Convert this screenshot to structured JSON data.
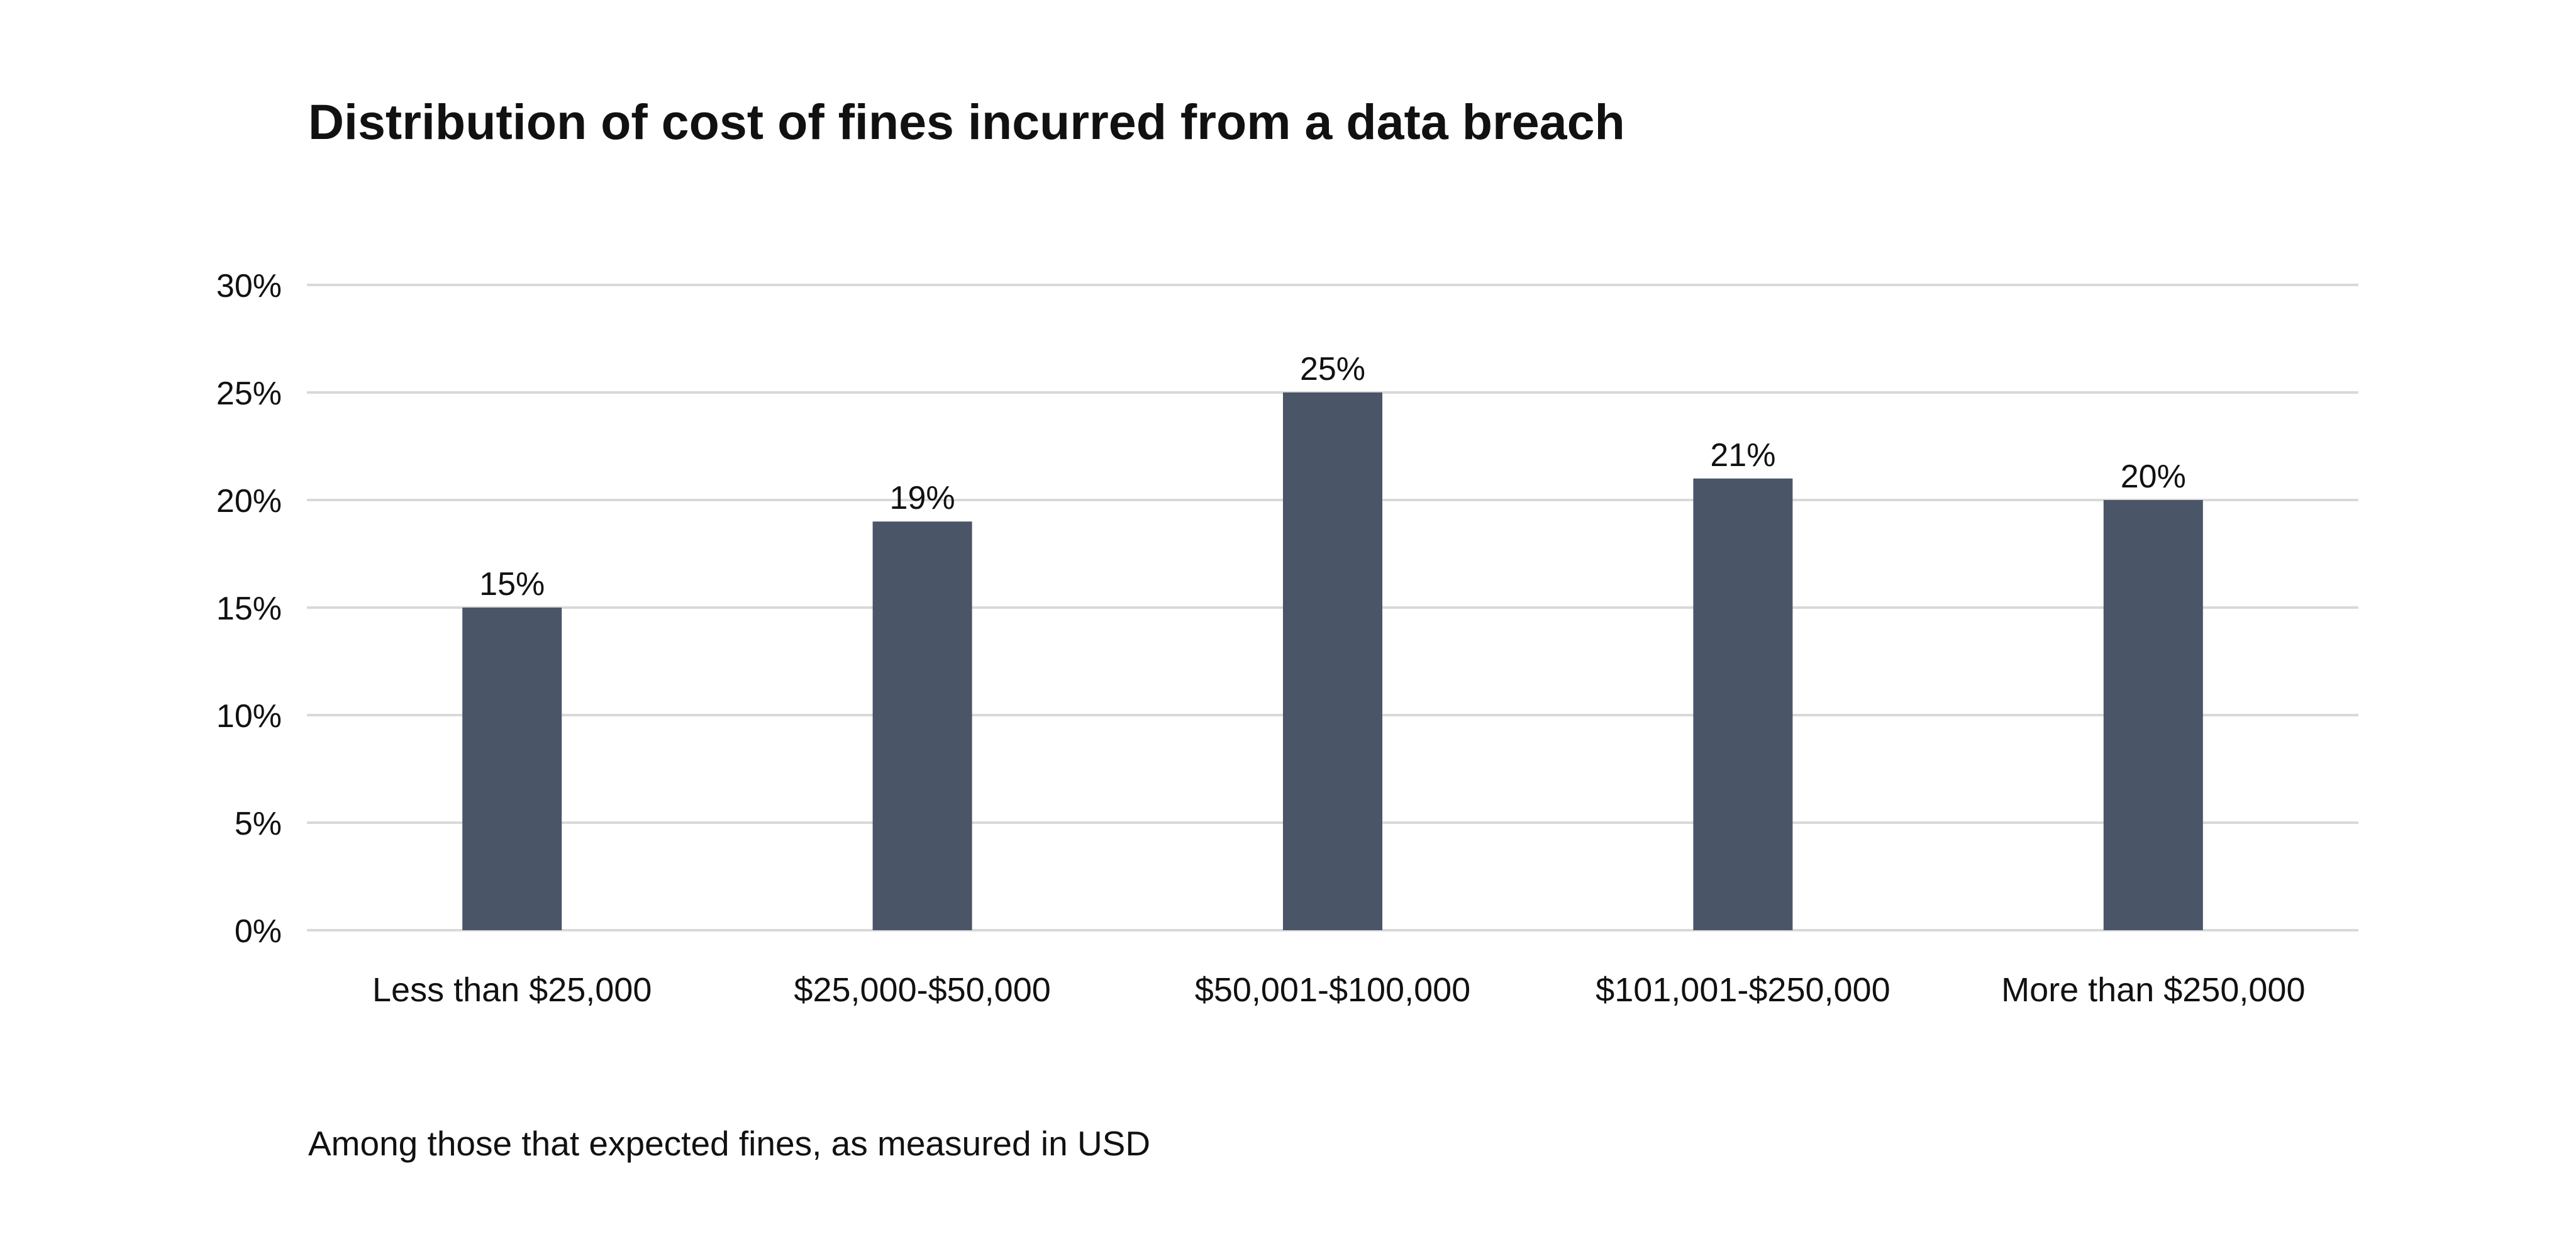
{
  "chart_data": {
    "type": "bar",
    "title": "Distribution of cost of fines incurred from a data breach",
    "subtitle": "",
    "footnote": "Among those that expected fines, as measured in USD",
    "xlabel": "",
    "ylabel": "",
    "categories": [
      "Less than $25,000",
      "$25,000-$50,000",
      "$50,001-$100,000",
      "$101,001-$250,000",
      "More than $250,000"
    ],
    "values": [
      15,
      19,
      25,
      21,
      20
    ],
    "data_labels": [
      "15%",
      "19%",
      "25%",
      "21%",
      "20%"
    ],
    "ylim": [
      0,
      30
    ],
    "yticks": [
      0,
      5,
      10,
      15,
      20,
      25,
      30
    ],
    "ytick_labels": [
      "0%",
      "5%",
      "10%",
      "15%",
      "20%",
      "25%",
      "30%"
    ],
    "grid": true,
    "legend": "none",
    "colors": {
      "bar": "#4a5568",
      "grid": "#d9d9d9",
      "text": "#111111"
    }
  }
}
